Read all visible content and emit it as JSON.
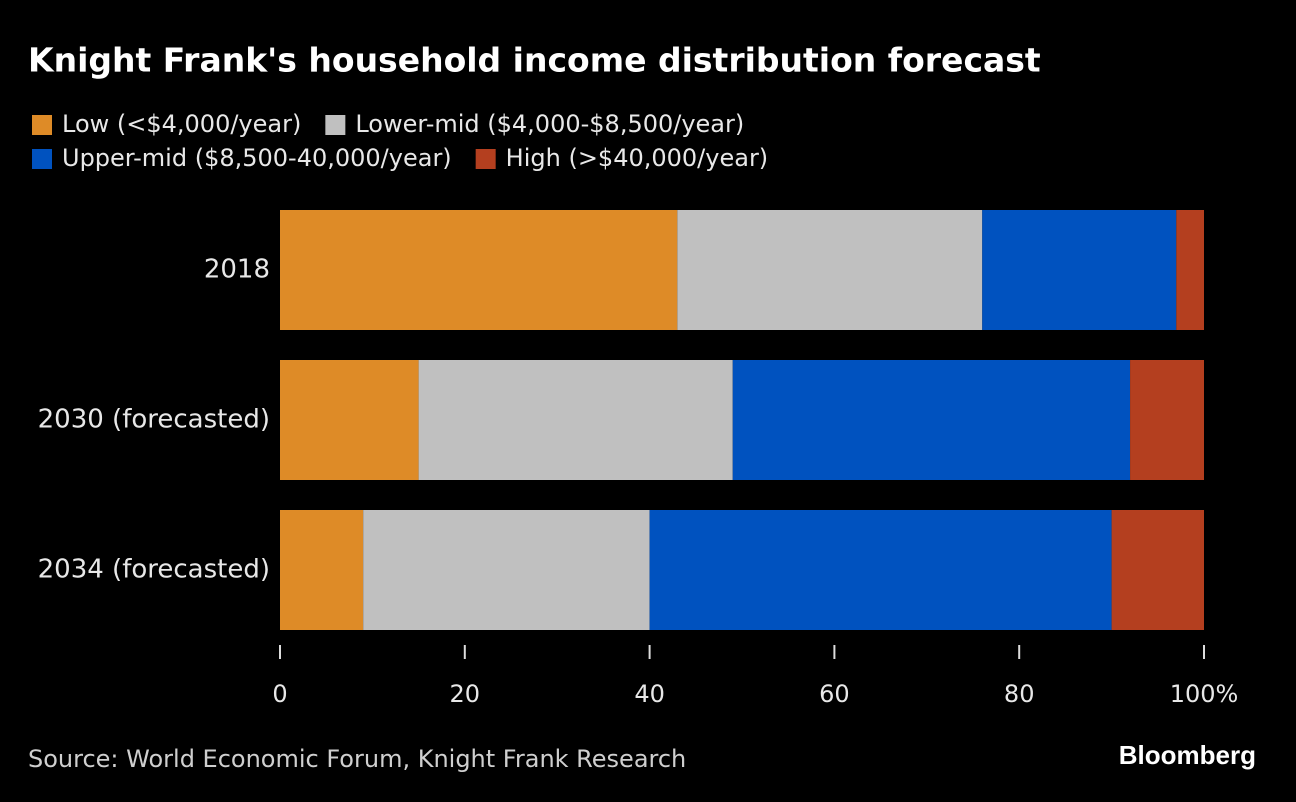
{
  "chart_data": {
    "type": "stacked-bar-horizontal",
    "title": "Knight Frank's household income distribution forecast",
    "categories": [
      "2018",
      "2030 (forecasted)",
      "2034 (forecasted)"
    ],
    "series": [
      {
        "name": "Low (<$4,000/year)",
        "color": "#de8b27",
        "values": [
          43,
          15,
          9
        ]
      },
      {
        "name": "Lower-mid ($4,000-$8,500/year)",
        "color": "#c0c0c0",
        "values": [
          33,
          34,
          31
        ]
      },
      {
        "name": "Upper-mid ($8,500-40,000/year)",
        "color": "#0052bf",
        "values": [
          21,
          43,
          50
        ]
      },
      {
        "name": "High (>$40,000/year)",
        "color": "#b43f1f",
        "values": [
          3,
          8,
          10
        ]
      }
    ],
    "xlim": [
      0,
      100
    ],
    "xticks": [
      0,
      20,
      40,
      60,
      80,
      {
        "value": 100,
        "label": "100%"
      }
    ],
    "source": "Source: World Economic Forum, Knight Frank Research",
    "brand": "Bloomberg"
  }
}
